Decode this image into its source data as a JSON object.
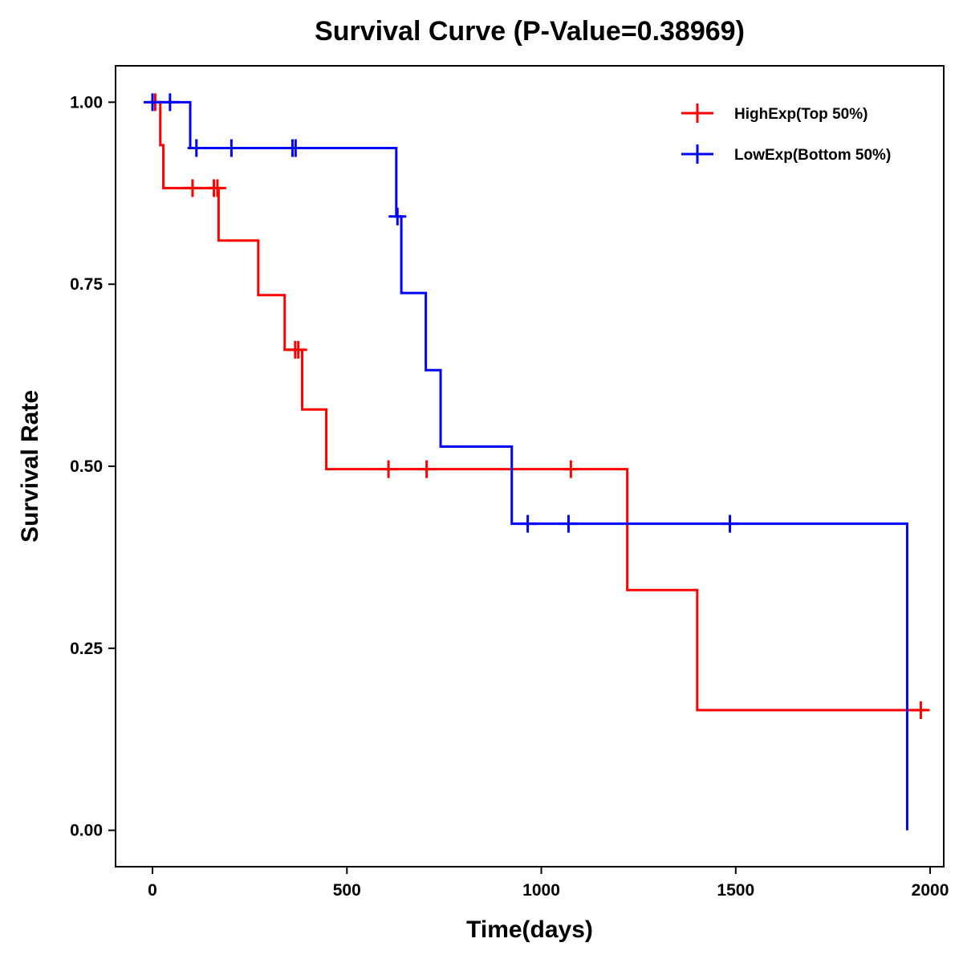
{
  "chart_data": {
    "type": "line",
    "subtype": "kaplan-meier",
    "title": "Survival Curve (P-Value=0.38969)",
    "xlabel": "Time(days)",
    "ylabel": "Survival Rate",
    "xlim": [
      -95,
      2035
    ],
    "ylim": [
      -0.05,
      1.05
    ],
    "xticks": [
      0,
      500,
      1000,
      1500,
      2000
    ],
    "xtick_labels": [
      "0",
      "500",
      "1000",
      "1500",
      "2000"
    ],
    "yticks": [
      0,
      0.25,
      0.5,
      0.75,
      1.0
    ],
    "ytick_labels": [
      "0.00",
      "0.25",
      "0.50",
      "0.75",
      "1.00"
    ],
    "legend_position": "top-right",
    "grid": false,
    "series": [
      {
        "name": "HighExp(Top 50%)",
        "color": "#ff0000",
        "end_x": 1990,
        "steps": [
          [
            0,
            1.0
          ],
          [
            20,
            0.941
          ],
          [
            28,
            0.882
          ],
          [
            170,
            0.81
          ],
          [
            272,
            0.735
          ],
          [
            340,
            0.66
          ],
          [
            385,
            0.578
          ],
          [
            447,
            0.496
          ],
          [
            1221,
            0.33
          ],
          [
            1401,
            0.165
          ]
        ],
        "censored": [
          [
            7,
            1.0
          ],
          [
            103,
            0.882
          ],
          [
            158,
            0.882
          ],
          [
            167,
            0.882
          ],
          [
            367,
            0.66
          ],
          [
            375,
            0.66
          ],
          [
            607,
            0.496
          ],
          [
            705,
            0.496
          ],
          [
            1076,
            0.496
          ],
          [
            1976,
            0.165
          ]
        ]
      },
      {
        "name": "LowExp(Bottom 50%)",
        "color": "#0000ff",
        "end_x": 1941,
        "steps": [
          [
            0,
            1.0
          ],
          [
            97,
            0.937
          ],
          [
            627,
            0.843
          ],
          [
            640,
            0.738
          ],
          [
            703,
            0.632
          ],
          [
            741,
            0.527
          ],
          [
            924,
            0.421
          ],
          [
            1941,
            0.0
          ]
        ],
        "censored": [
          [
            0,
            1.0
          ],
          [
            45,
            1.0
          ],
          [
            113,
            0.937
          ],
          [
            203,
            0.937
          ],
          [
            360,
            0.937
          ],
          [
            368,
            0.937
          ],
          [
            630,
            0.843
          ],
          [
            965,
            0.421
          ],
          [
            1070,
            0.421
          ],
          [
            1485,
            0.421
          ]
        ]
      }
    ]
  }
}
